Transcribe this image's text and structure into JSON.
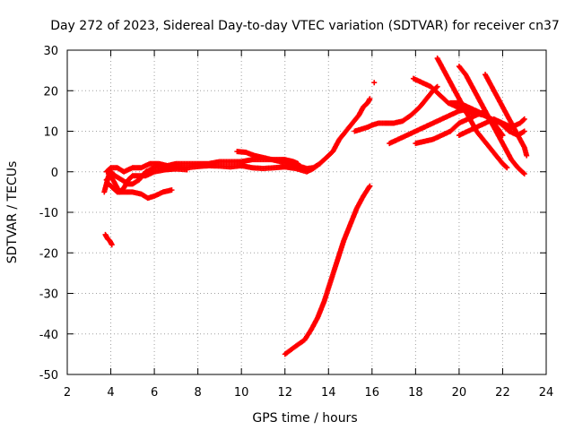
{
  "chart_data": {
    "type": "scatter",
    "title": "Day 272 of 2023, Sidereal Day-to-day VTEC variation (SDTVAR) for receiver cn37",
    "xlabel": "GPS time / hours",
    "ylabel": "SDTVAR / TECUs",
    "xlim": [
      2,
      24
    ],
    "ylim": [
      -50,
      30
    ],
    "xticks": [
      2,
      4,
      6,
      8,
      10,
      12,
      14,
      16,
      18,
      20,
      22,
      24
    ],
    "yticks": [
      -50,
      -40,
      -30,
      -20,
      -10,
      0,
      10,
      20,
      30
    ],
    "grid": true,
    "marker": "+",
    "color": "#ff0000",
    "series": [
      {
        "name": "t1",
        "points": [
          [
            3.7,
            -5
          ],
          [
            3.8,
            -3
          ],
          [
            3.9,
            -1
          ],
          [
            4.0,
            0
          ],
          [
            4.2,
            -1
          ],
          [
            4.5,
            -2
          ],
          [
            4.8,
            -3
          ],
          [
            5.0,
            -3
          ],
          [
            5.3,
            -2
          ],
          [
            5.6,
            0
          ],
          [
            6.0,
            1
          ],
          [
            6.5,
            1.5
          ],
          [
            7.0,
            1.2
          ],
          [
            7.5,
            1.0
          ],
          [
            8.0,
            1.3
          ],
          [
            8.5,
            1.5
          ],
          [
            9.0,
            1.4
          ],
          [
            9.5,
            1.2
          ],
          [
            10.0,
            1.5
          ],
          [
            10.5,
            1.0
          ],
          [
            11.0,
            0.8
          ],
          [
            11.5,
            1.0
          ],
          [
            12.0,
            1.2
          ],
          [
            12.5,
            0.8
          ],
          [
            13.0,
            0
          ],
          [
            13.3,
            0.8
          ],
          [
            13.6,
            2
          ],
          [
            13.9,
            3.5
          ],
          [
            14.2,
            5
          ],
          [
            14.5,
            8
          ],
          [
            14.8,
            10
          ],
          [
            15.1,
            12
          ],
          [
            15.4,
            14
          ],
          [
            15.6,
            16
          ],
          [
            15.8,
            17
          ],
          [
            15.9,
            18
          ]
        ]
      },
      {
        "name": "t2",
        "points": [
          [
            3.8,
            -2
          ],
          [
            4.0,
            -1
          ],
          [
            4.2,
            -3
          ],
          [
            4.4,
            -5
          ],
          [
            4.6,
            -4
          ],
          [
            4.8,
            -2
          ],
          [
            5.0,
            -1
          ],
          [
            5.3,
            -1
          ],
          [
            5.6,
            -1
          ],
          [
            6.0,
            0
          ],
          [
            6.5,
            0.5
          ],
          [
            7.0,
            0.7
          ],
          [
            7.5,
            0.5
          ]
        ]
      },
      {
        "name": "t3",
        "points": [
          [
            3.9,
            -3
          ],
          [
            4.1,
            -4
          ],
          [
            4.3,
            -5
          ],
          [
            4.6,
            -5
          ],
          [
            5.0,
            -5
          ],
          [
            5.4,
            -5.5
          ],
          [
            5.7,
            -6.5
          ],
          [
            6.0,
            -6
          ],
          [
            6.4,
            -5
          ],
          [
            6.8,
            -4.5
          ]
        ]
      },
      {
        "name": "t4",
        "points": [
          [
            3.8,
            0
          ],
          [
            4.0,
            1
          ],
          [
            4.3,
            1
          ],
          [
            4.6,
            0
          ],
          [
            5.0,
            1
          ],
          [
            5.4,
            1
          ],
          [
            5.8,
            2
          ],
          [
            6.2,
            2
          ],
          [
            6.6,
            1.5
          ],
          [
            7.0,
            2
          ],
          [
            7.5,
            2
          ],
          [
            8.0,
            2
          ],
          [
            8.5,
            2
          ],
          [
            9.0,
            2.5
          ],
          [
            9.5,
            2.5
          ],
          [
            10.0,
            2.5
          ],
          [
            10.5,
            3
          ],
          [
            11.0,
            3
          ],
          [
            11.5,
            3
          ],
          [
            12.0,
            3
          ],
          [
            12.4,
            2.5
          ],
          [
            12.6,
            2
          ]
        ]
      },
      {
        "name": "t5",
        "points": [
          [
            9.8,
            5
          ],
          [
            10.2,
            4.8
          ],
          [
            10.6,
            4
          ],
          [
            11.0,
            3.5
          ],
          [
            11.4,
            3
          ],
          [
            11.8,
            2.5
          ],
          [
            12.2,
            2
          ],
          [
            12.6,
            1.5
          ],
          [
            13.0,
            0.8
          ],
          [
            13.3,
            1
          ],
          [
            13.6,
            2
          ]
        ]
      },
      {
        "name": "t6",
        "points": [
          [
            3.75,
            -15.5
          ],
          [
            3.85,
            -16.5
          ],
          [
            3.95,
            -17
          ],
          [
            4.05,
            -18
          ]
        ]
      },
      {
        "name": "t7",
        "points": [
          [
            12.0,
            -45
          ],
          [
            12.5,
            -43
          ],
          [
            12.9,
            -41.5
          ],
          [
            13.2,
            -39
          ],
          [
            13.5,
            -36
          ],
          [
            13.8,
            -32
          ],
          [
            14.1,
            -27
          ],
          [
            14.4,
            -22
          ],
          [
            14.7,
            -17
          ],
          [
            15.0,
            -13
          ],
          [
            15.3,
            -9
          ],
          [
            15.6,
            -6
          ],
          [
            15.9,
            -3.5
          ]
        ]
      },
      {
        "name": "t8",
        "points": [
          [
            15.2,
            10
          ],
          [
            15.5,
            10.5
          ],
          [
            15.8,
            11
          ],
          [
            16.0,
            11.5
          ],
          [
            16.3,
            12
          ],
          [
            16.6,
            12
          ],
          [
            17.0,
            12
          ],
          [
            17.4,
            12.5
          ],
          [
            17.8,
            14
          ],
          [
            18.2,
            16
          ],
          [
            18.5,
            18
          ],
          [
            18.8,
            20
          ],
          [
            19.0,
            21
          ]
        ]
      },
      {
        "name": "t9",
        "points": [
          [
            16.1,
            22
          ]
        ]
      },
      {
        "name": "t10",
        "points": [
          [
            16.8,
            7
          ],
          [
            17.2,
            8
          ],
          [
            17.6,
            9
          ],
          [
            18.0,
            10
          ],
          [
            18.4,
            11
          ],
          [
            18.8,
            12
          ],
          [
            19.2,
            13
          ],
          [
            19.6,
            14
          ],
          [
            20.0,
            15
          ],
          [
            20.4,
            15.5
          ],
          [
            20.8,
            15
          ]
        ]
      },
      {
        "name": "t11",
        "points": [
          [
            17.9,
            23
          ],
          [
            18.3,
            22
          ],
          [
            18.7,
            21
          ],
          [
            19.1,
            19
          ],
          [
            19.5,
            17
          ],
          [
            19.9,
            16
          ],
          [
            20.3,
            15
          ],
          [
            20.7,
            14.5
          ],
          [
            21.1,
            14
          ],
          [
            21.5,
            13
          ],
          [
            21.9,
            12
          ],
          [
            22.3,
            10
          ],
          [
            22.7,
            9
          ],
          [
            23.0,
            10
          ]
        ]
      },
      {
        "name": "t12",
        "points": [
          [
            18.0,
            7
          ],
          [
            18.4,
            7.5
          ],
          [
            18.8,
            8
          ],
          [
            19.2,
            9
          ],
          [
            19.6,
            10
          ],
          [
            20.0,
            12
          ],
          [
            20.4,
            13
          ],
          [
            20.8,
            14
          ],
          [
            21.2,
            15
          ]
        ]
      },
      {
        "name": "t13",
        "points": [
          [
            19.0,
            28
          ],
          [
            19.3,
            25
          ],
          [
            19.6,
            22
          ],
          [
            19.9,
            19
          ],
          [
            20.2,
            16
          ],
          [
            20.5,
            13
          ],
          [
            20.8,
            10
          ],
          [
            21.1,
            8
          ],
          [
            21.4,
            6
          ],
          [
            21.7,
            4
          ],
          [
            22.0,
            2
          ],
          [
            22.2,
            1
          ]
        ]
      },
      {
        "name": "t14",
        "points": [
          [
            20.0,
            26
          ],
          [
            20.3,
            24
          ],
          [
            20.6,
            21
          ],
          [
            20.9,
            18
          ],
          [
            21.2,
            15
          ],
          [
            21.5,
            12
          ],
          [
            21.8,
            9
          ],
          [
            22.1,
            6
          ],
          [
            22.4,
            3
          ],
          [
            22.7,
            1
          ],
          [
            23.0,
            -0.5
          ]
        ]
      },
      {
        "name": "t15",
        "points": [
          [
            21.2,
            24
          ],
          [
            21.5,
            21
          ],
          [
            21.8,
            18
          ],
          [
            22.1,
            15
          ],
          [
            22.4,
            12
          ],
          [
            22.7,
            9
          ],
          [
            23.0,
            6
          ],
          [
            23.1,
            4
          ]
        ]
      },
      {
        "name": "t16",
        "points": [
          [
            20.0,
            9
          ],
          [
            20.4,
            10
          ],
          [
            20.8,
            11
          ],
          [
            21.2,
            12
          ],
          [
            21.6,
            13
          ],
          [
            22.0,
            12
          ],
          [
            22.4,
            11
          ],
          [
            22.8,
            12
          ],
          [
            23.0,
            13
          ]
        ]
      },
      {
        "name": "t17",
        "points": [
          [
            19.6,
            17
          ],
          [
            20.0,
            17
          ],
          [
            20.4,
            16
          ],
          [
            20.8,
            15
          ],
          [
            21.2,
            14
          ],
          [
            21.6,
            12
          ],
          [
            22.0,
            9
          ]
        ]
      }
    ]
  }
}
